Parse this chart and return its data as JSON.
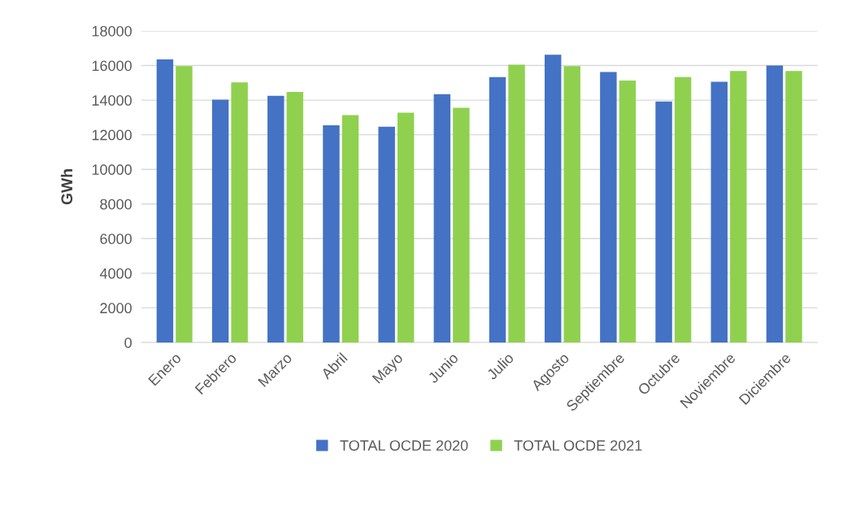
{
  "chart_data": {
    "type": "bar",
    "ylabel": "GWh",
    "categories": [
      "Enero",
      "Febrero",
      "Marzo",
      "Abril",
      "Mayo",
      "Junio",
      "Julio",
      "Agosto",
      "Septiembre",
      "Octubre",
      "Noviembre",
      "Diciembre"
    ],
    "series": [
      {
        "name": "TOTAL OCDE 2020",
        "color": "#4472c4",
        "values": [
          16350,
          14030,
          14250,
          12550,
          12470,
          14350,
          15330,
          16630,
          15620,
          13920,
          15060,
          16000
        ]
      },
      {
        "name": "TOTAL OCDE 2021",
        "color": "#8fd14f",
        "values": [
          15970,
          15030,
          14470,
          13130,
          13280,
          13560,
          16050,
          15970,
          15130,
          15330,
          15690,
          15690
        ]
      }
    ],
    "ylim": [
      0,
      18000
    ],
    "yticks": [
      0,
      2000,
      4000,
      6000,
      8000,
      10000,
      12000,
      14000,
      16000,
      18000
    ],
    "grid": "y",
    "legend": "bottom"
  }
}
